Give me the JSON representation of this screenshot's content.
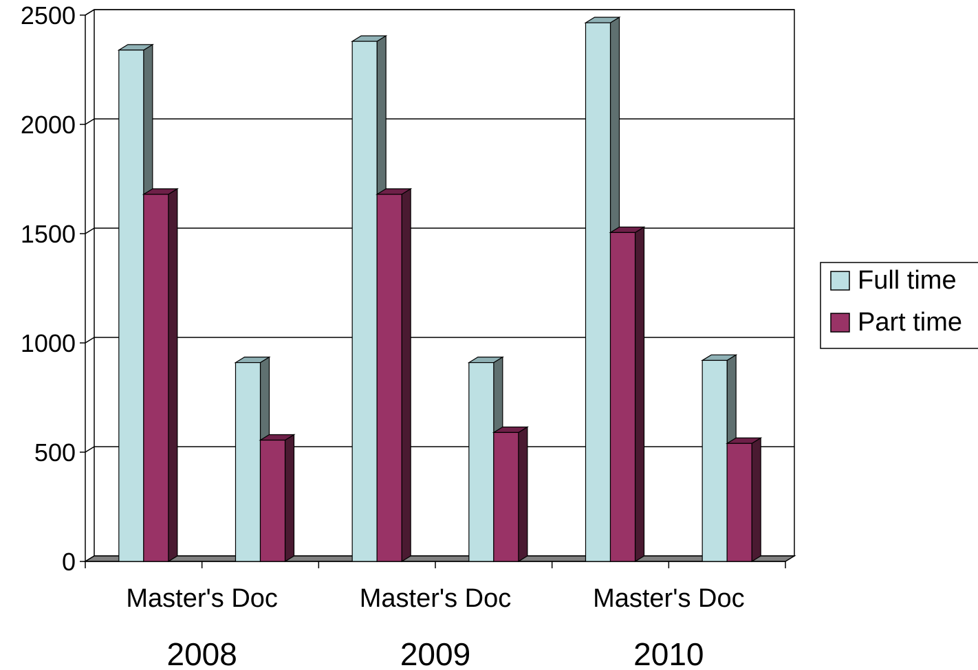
{
  "chart_data": {
    "type": "bar",
    "style": "3d-clustered",
    "categories": [
      "Master's",
      "Doc",
      "Master's",
      "Doc",
      "Master's",
      "Doc"
    ],
    "groups": [
      {
        "label": "2008",
        "categories": [
          "Master's",
          "Doc"
        ]
      },
      {
        "label": "2009",
        "categories": [
          "Master's",
          "Doc"
        ]
      },
      {
        "label": "2010",
        "categories": [
          "Master's",
          "Doc"
        ]
      }
    ],
    "series": [
      {
        "name": "Full time",
        "color": "#bde0e3",
        "side_color": "#5f7070",
        "top_color": "#8fb1b5",
        "values": [
          2340,
          910,
          2380,
          910,
          2465,
          920
        ]
      },
      {
        "name": "Part time",
        "color": "#993366",
        "side_color": "#4a1a31",
        "top_color": "#6e2048",
        "values": [
          1680,
          555,
          1680,
          590,
          1505,
          540
        ]
      }
    ],
    "ylim": [
      0,
      2500
    ],
    "yticks": [
      0,
      500,
      1000,
      1500,
      2000,
      2500
    ],
    "grid": true,
    "legend_position": "right",
    "xlabel": "",
    "ylabel": "",
    "title": ""
  }
}
